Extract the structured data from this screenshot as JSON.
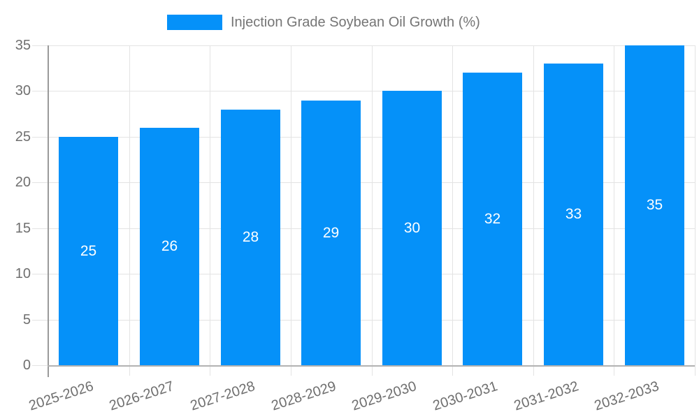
{
  "chart_data": {
    "type": "bar",
    "title": "Injection Grade Soybean Oil Growth (%)",
    "categories": [
      "2025-2026",
      "2026-2027",
      "2027-2028",
      "2028-2029",
      "2029-2030",
      "2030-2031",
      "2031-2032",
      "2032-2033"
    ],
    "values": [
      25,
      26,
      28,
      29,
      30,
      32,
      33,
      35
    ],
    "xlabel": "",
    "ylabel": "",
    "ylim": [
      0,
      35
    ],
    "yticks": [
      0,
      5,
      10,
      15,
      20,
      25,
      30,
      35
    ],
    "grid": true,
    "legend_position": "top",
    "bar_color": "#0591F9",
    "value_label_color": "#FFFFFF",
    "axis_text_color": "#6F6F6F"
  }
}
